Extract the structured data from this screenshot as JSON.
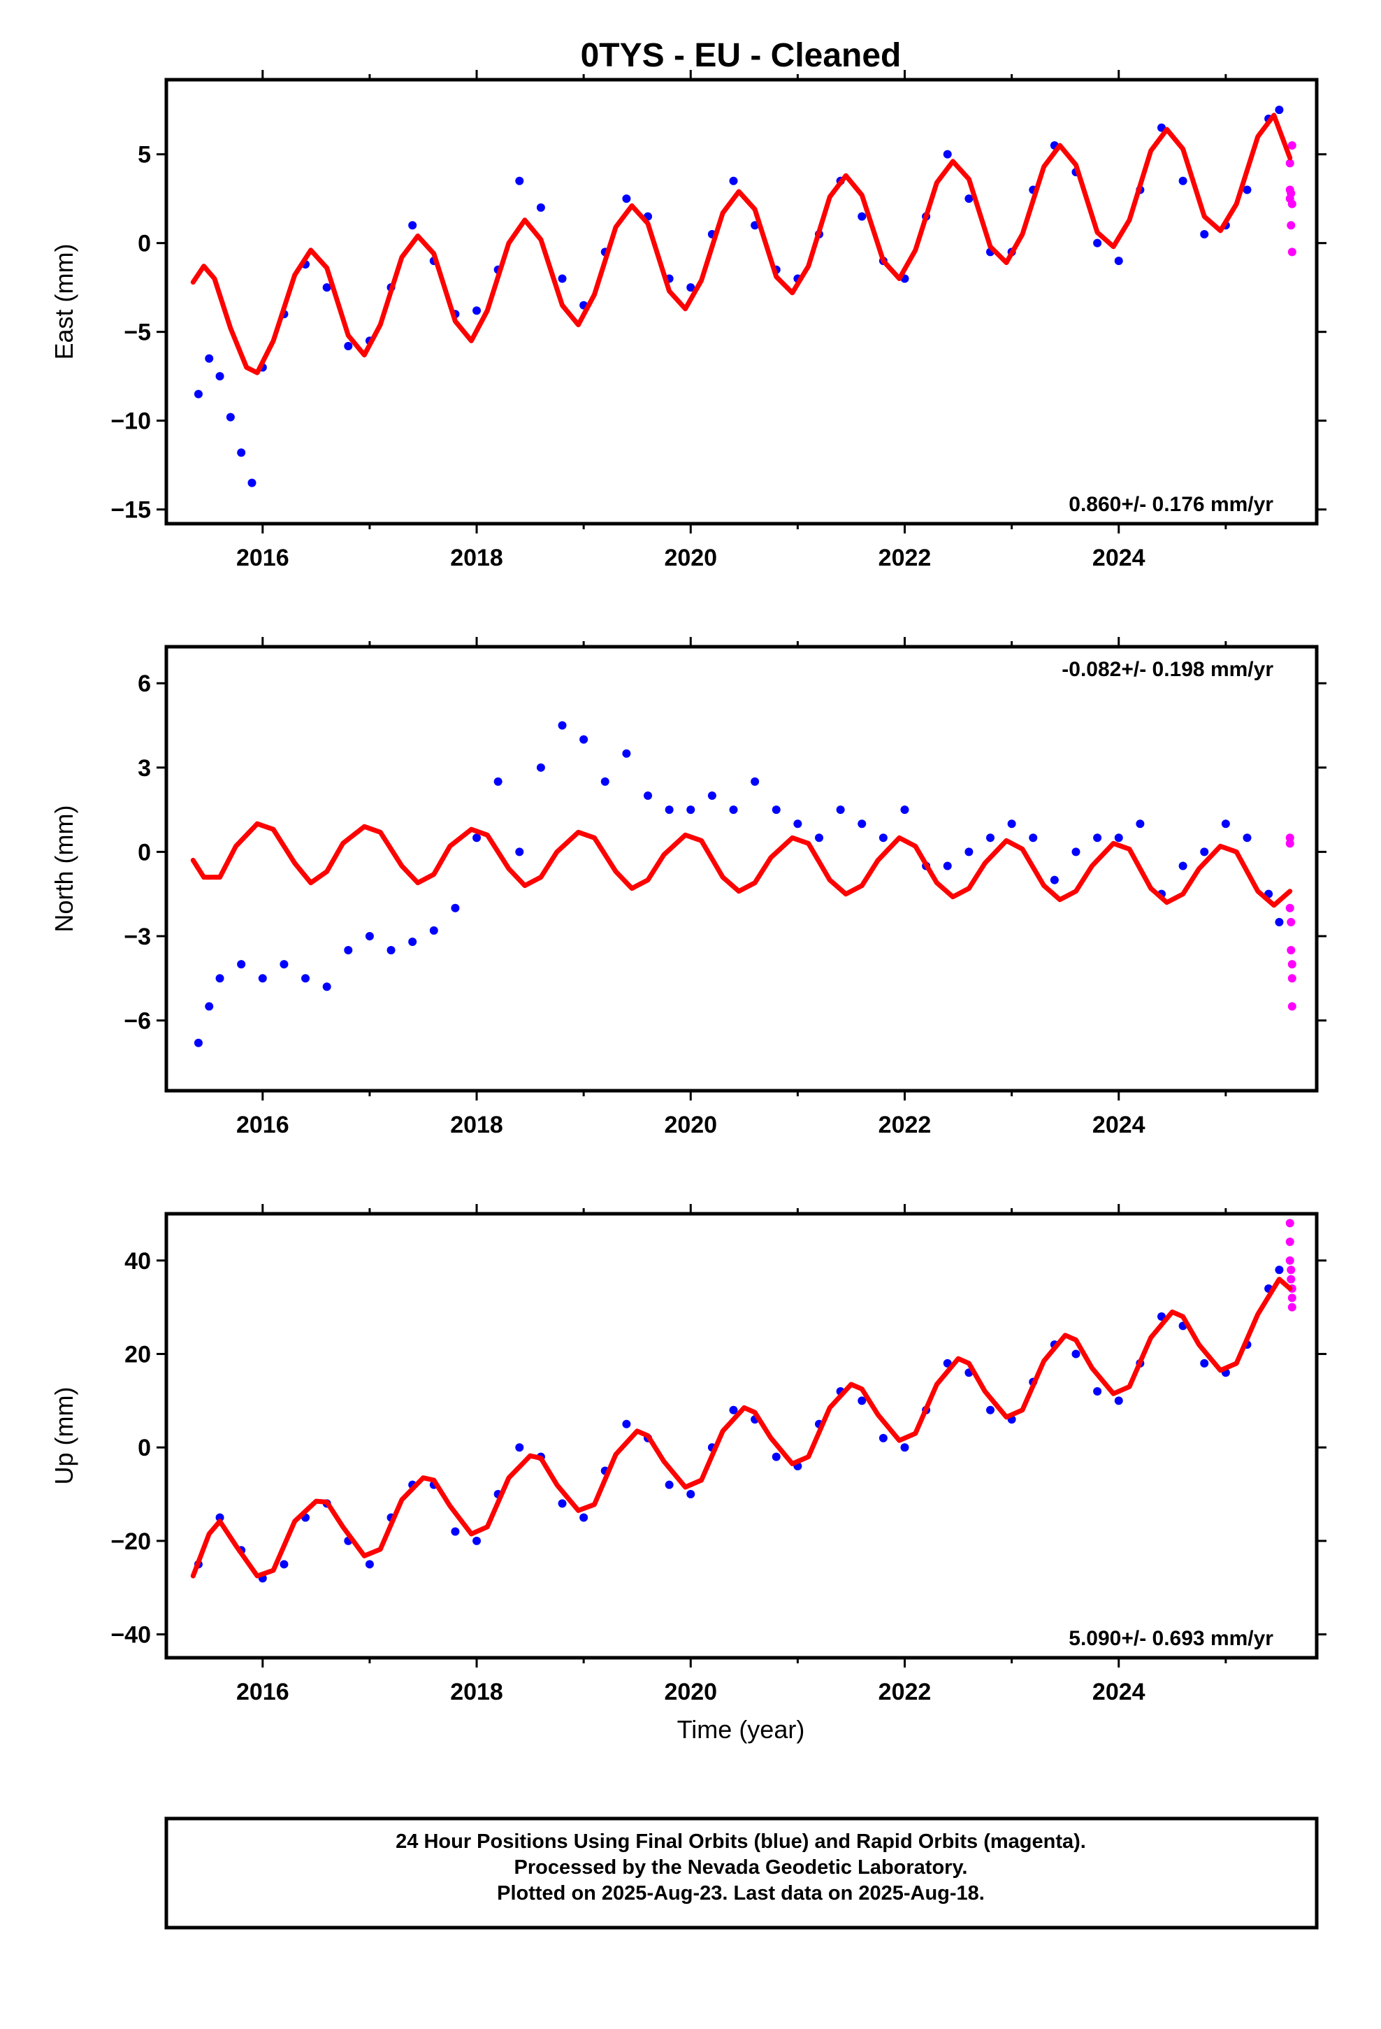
{
  "title": "0TYS  - EU - Cleaned",
  "colors": {
    "final": "#0000ff",
    "rapid": "#ff00ff",
    "model": "#ff0000",
    "frame": "#000000"
  },
  "footer": {
    "line1": "24 Hour Positions Using Final Orbits (blue) and Rapid Orbits (magenta).",
    "line2": "Processed by the Nevada Geodetic Laboratory.",
    "line3": "Plotted on 2025-Aug-23. Last data on 2025-Aug-18."
  },
  "chart_data": [
    {
      "type": "scatter",
      "component": "East",
      "ylabel": "East (mm)",
      "xlim": [
        2015.1,
        2025.85
      ],
      "ylim": [
        -15.8,
        9.2
      ],
      "xticks": [
        2016,
        2018,
        2020,
        2022,
        2024
      ],
      "xticklabels": [
        "2016",
        "2018",
        "2020",
        "2022",
        "2024"
      ],
      "yticks": [
        5,
        0,
        -5,
        -10,
        -15
      ],
      "yticklabels": [
        "5",
        "0",
        "−5",
        "−10",
        "−15"
      ],
      "rate_label": "0.860+/- 0.176 mm/yr",
      "rate_position": "bottom-right",
      "series": [
        {
          "name": "Final Orbits (blue)",
          "style": "dots",
          "x": [
            2015.4,
            2015.5,
            2015.6,
            2015.7,
            2015.8,
            2015.9,
            2016.0,
            2016.2,
            2016.4,
            2016.6,
            2016.8,
            2017.0,
            2017.2,
            2017.4,
            2017.6,
            2017.8,
            2018.0,
            2018.2,
            2018.4,
            2018.6,
            2018.8,
            2019.0,
            2019.2,
            2019.4,
            2019.6,
            2019.8,
            2020.0,
            2020.2,
            2020.4,
            2020.6,
            2020.8,
            2021.0,
            2021.2,
            2021.4,
            2021.6,
            2021.8,
            2022.0,
            2022.2,
            2022.4,
            2022.6,
            2022.8,
            2023.0,
            2023.2,
            2023.4,
            2023.6,
            2023.8,
            2024.0,
            2024.2,
            2024.4,
            2024.6,
            2024.8,
            2025.0,
            2025.2,
            2025.4,
            2025.5
          ],
          "y": [
            -8.5,
            -6.5,
            -7.5,
            -9.8,
            -11.8,
            -13.5,
            -7.0,
            -4.0,
            -1.2,
            -2.5,
            -5.8,
            -5.5,
            -2.5,
            1.0,
            -1.0,
            -4.0,
            -3.8,
            -1.5,
            3.5,
            2.0,
            -2.0,
            -3.5,
            -0.5,
            2.5,
            1.5,
            -2.0,
            -2.5,
            0.5,
            3.5,
            1.0,
            -1.5,
            -2.0,
            0.5,
            3.5,
            1.5,
            -1.0,
            -2.0,
            1.5,
            5.0,
            2.5,
            -0.5,
            -0.5,
            3.0,
            5.5,
            4.0,
            0.0,
            -1.0,
            3.0,
            6.5,
            3.5,
            0.5,
            1.0,
            3.0,
            7.0,
            7.5
          ]
        },
        {
          "name": "Rapid Orbits (magenta)",
          "style": "dots",
          "x": [
            2025.6,
            2025.6,
            2025.6,
            2025.61,
            2025.61,
            2025.62,
            2025.62,
            2025.62
          ],
          "y": [
            4.5,
            3.0,
            2.5,
            2.8,
            1.0,
            -0.5,
            5.5,
            2.2
          ]
        },
        {
          "name": "Model",
          "style": "line",
          "color": "#ff0000",
          "x": [
            2015.35,
            2015.45,
            2015.55,
            2015.7,
            2015.85,
            2015.95,
            2016.1,
            2016.3,
            2016.45,
            2016.6,
            2016.8,
            2016.95,
            2017.1,
            2017.3,
            2017.45,
            2017.6,
            2017.8,
            2017.95,
            2018.1,
            2018.3,
            2018.45,
            2018.6,
            2018.8,
            2018.95,
            2019.1,
            2019.3,
            2019.45,
            2019.6,
            2019.8,
            2019.95,
            2020.1,
            2020.3,
            2020.45,
            2020.6,
            2020.8,
            2020.95,
            2021.1,
            2021.3,
            2021.45,
            2021.6,
            2021.8,
            2021.95,
            2022.1,
            2022.3,
            2022.45,
            2022.6,
            2022.8,
            2022.95,
            2023.1,
            2023.3,
            2023.45,
            2023.6,
            2023.8,
            2023.95,
            2024.1,
            2024.3,
            2024.45,
            2024.6,
            2024.8,
            2024.95,
            2025.1,
            2025.3,
            2025.45,
            2025.6
          ],
          "y": [
            -2.2,
            -1.3,
            -2.0,
            -4.8,
            -7.0,
            -7.3,
            -5.5,
            -1.8,
            -0.4,
            -1.4,
            -5.2,
            -6.3,
            -4.6,
            -0.8,
            0.4,
            -0.6,
            -4.4,
            -5.5,
            -3.8,
            0.0,
            1.3,
            0.2,
            -3.5,
            -4.6,
            -2.9,
            0.9,
            2.1,
            1.1,
            -2.7,
            -3.7,
            -2.1,
            1.7,
            2.9,
            1.9,
            -1.9,
            -2.8,
            -1.3,
            2.6,
            3.8,
            2.7,
            -1.0,
            -2.0,
            -0.4,
            3.4,
            4.6,
            3.6,
            -0.2,
            -1.1,
            0.5,
            4.3,
            5.5,
            4.4,
            0.6,
            -0.2,
            1.3,
            5.2,
            6.4,
            5.3,
            1.5,
            0.7,
            2.2,
            6.0,
            7.2,
            4.8
          ]
        }
      ]
    },
    {
      "type": "scatter",
      "component": "North",
      "ylabel": "North (mm)",
      "xlim": [
        2015.1,
        2025.85
      ],
      "ylim": [
        -8.5,
        7.3
      ],
      "xticks": [
        2016,
        2018,
        2020,
        2022,
        2024
      ],
      "xticklabels": [
        "2016",
        "2018",
        "2020",
        "2022",
        "2024"
      ],
      "yticks": [
        6,
        3,
        0,
        -3,
        -6
      ],
      "yticklabels": [
        "6",
        "3",
        "0",
        "−3",
        "−6"
      ],
      "rate_label": "-0.082+/- 0.198 mm/yr",
      "rate_position": "top-right",
      "series": [
        {
          "name": "Final Orbits (blue)",
          "style": "dots",
          "x": [
            2015.4,
            2015.5,
            2015.6,
            2015.8,
            2016.0,
            2016.2,
            2016.4,
            2016.6,
            2016.8,
            2017.0,
            2017.2,
            2017.4,
            2017.6,
            2017.8,
            2018.0,
            2018.2,
            2018.4,
            2018.6,
            2018.8,
            2019.0,
            2019.2,
            2019.4,
            2019.6,
            2019.8,
            2020.0,
            2020.2,
            2020.4,
            2020.6,
            2020.8,
            2021.0,
            2021.2,
            2021.4,
            2021.6,
            2021.8,
            2022.0,
            2022.2,
            2022.4,
            2022.6,
            2022.8,
            2023.0,
            2023.2,
            2023.4,
            2023.6,
            2023.8,
            2024.0,
            2024.2,
            2024.4,
            2024.6,
            2024.8,
            2025.0,
            2025.2,
            2025.4,
            2025.5
          ],
          "y": [
            -6.8,
            -5.5,
            -4.5,
            -4.0,
            -4.5,
            -4.0,
            -4.5,
            -4.8,
            -3.5,
            -3.0,
            -3.5,
            -3.2,
            -2.8,
            -2.0,
            0.5,
            2.5,
            0.0,
            3.0,
            4.5,
            4.0,
            2.5,
            3.5,
            2.0,
            1.5,
            1.5,
            2.0,
            1.5,
            2.5,
            1.5,
            1.0,
            0.5,
            1.5,
            1.0,
            0.5,
            1.5,
            -0.5,
            -0.5,
            0.0,
            0.5,
            1.0,
            0.5,
            -1.0,
            0.0,
            0.5,
            0.5,
            1.0,
            -1.5,
            -0.5,
            0.0,
            1.0,
            0.5,
            -1.5,
            -2.5
          ]
        },
        {
          "name": "Rapid Orbits (magenta)",
          "style": "dots",
          "x": [
            2025.6,
            2025.6,
            2025.6,
            2025.61,
            2025.61,
            2025.62,
            2025.62,
            2025.62
          ],
          "y": [
            0.5,
            0.3,
            -2.0,
            -2.5,
            -3.5,
            -4.0,
            -4.5,
            -5.5
          ]
        },
        {
          "name": "Model",
          "style": "line",
          "color": "#ff0000",
          "x": [
            2015.35,
            2015.45,
            2015.6,
            2015.75,
            2015.95,
            2016.1,
            2016.3,
            2016.45,
            2016.6,
            2016.75,
            2016.95,
            2017.1,
            2017.3,
            2017.45,
            2017.6,
            2017.75,
            2017.95,
            2018.1,
            2018.3,
            2018.45,
            2018.6,
            2018.75,
            2018.95,
            2019.1,
            2019.3,
            2019.45,
            2019.6,
            2019.75,
            2019.95,
            2020.1,
            2020.3,
            2020.45,
            2020.6,
            2020.75,
            2020.95,
            2021.1,
            2021.3,
            2021.45,
            2021.6,
            2021.75,
            2021.95,
            2022.1,
            2022.3,
            2022.45,
            2022.6,
            2022.75,
            2022.95,
            2023.1,
            2023.3,
            2023.45,
            2023.6,
            2023.75,
            2023.95,
            2024.1,
            2024.3,
            2024.45,
            2024.6,
            2024.75,
            2024.95,
            2025.1,
            2025.3,
            2025.45,
            2025.6
          ],
          "y": [
            -0.3,
            -0.9,
            -0.9,
            0.2,
            1.0,
            0.8,
            -0.4,
            -1.1,
            -0.7,
            0.3,
            0.9,
            0.7,
            -0.5,
            -1.1,
            -0.8,
            0.2,
            0.8,
            0.6,
            -0.6,
            -1.2,
            -0.9,
            0.0,
            0.7,
            0.5,
            -0.7,
            -1.3,
            -1.0,
            -0.1,
            0.6,
            0.4,
            -0.9,
            -1.4,
            -1.1,
            -0.2,
            0.5,
            0.3,
            -1.0,
            -1.5,
            -1.2,
            -0.3,
            0.5,
            0.2,
            -1.1,
            -1.6,
            -1.3,
            -0.4,
            0.4,
            0.1,
            -1.2,
            -1.7,
            -1.4,
            -0.5,
            0.3,
            0.1,
            -1.3,
            -1.8,
            -1.5,
            -0.6,
            0.2,
            0.0,
            -1.4,
            -1.9,
            -1.4
          ]
        }
      ]
    },
    {
      "type": "scatter",
      "component": "Up",
      "ylabel": "Up (mm)",
      "xlim": [
        2015.1,
        2025.85
      ],
      "ylim": [
        -45,
        50
      ],
      "xticks": [
        2016,
        2018,
        2020,
        2022,
        2024
      ],
      "xticklabels": [
        "2016",
        "2018",
        "2020",
        "2022",
        "2024"
      ],
      "yticks": [
        40,
        20,
        0,
        -20,
        -40
      ],
      "yticklabels": [
        "40",
        "20",
        "0",
        "−20",
        "−40"
      ],
      "rate_label": "5.090+/- 0.693 mm/yr",
      "rate_position": "bottom-right",
      "xlabel": "Time (year)",
      "series": [
        {
          "name": "Final Orbits (blue)",
          "style": "dots",
          "x": [
            2015.4,
            2015.6,
            2015.8,
            2016.0,
            2016.2,
            2016.4,
            2016.6,
            2016.8,
            2017.0,
            2017.2,
            2017.4,
            2017.6,
            2017.8,
            2018.0,
            2018.2,
            2018.4,
            2018.6,
            2018.8,
            2019.0,
            2019.2,
            2019.4,
            2019.6,
            2019.8,
            2020.0,
            2020.2,
            2020.4,
            2020.6,
            2020.8,
            2021.0,
            2021.2,
            2021.4,
            2021.6,
            2021.8,
            2022.0,
            2022.2,
            2022.4,
            2022.6,
            2022.8,
            2023.0,
            2023.2,
            2023.4,
            2023.6,
            2023.8,
            2024.0,
            2024.2,
            2024.4,
            2024.6,
            2024.8,
            2025.0,
            2025.2,
            2025.4,
            2025.5
          ],
          "y": [
            -25,
            -15,
            -22,
            -28,
            -25,
            -15,
            -12,
            -20,
            -25,
            -15,
            -8,
            -8,
            -18,
            -20,
            -10,
            0,
            -2,
            -12,
            -15,
            -5,
            5,
            2,
            -8,
            -10,
            0,
            8,
            6,
            -2,
            -4,
            5,
            12,
            10,
            2,
            0,
            8,
            18,
            16,
            8,
            6,
            14,
            22,
            20,
            12,
            10,
            18,
            28,
            26,
            18,
            16,
            22,
            34,
            38
          ]
        },
        {
          "name": "Rapid Orbits (magenta)",
          "style": "dots",
          "x": [
            2025.6,
            2025.6,
            2025.6,
            2025.61,
            2025.61,
            2025.62,
            2025.62,
            2025.62
          ],
          "y": [
            48,
            44,
            40,
            38,
            36,
            34,
            32,
            30
          ]
        },
        {
          "name": "Model",
          "style": "line",
          "color": "#ff0000",
          "x": [
            2015.35,
            2015.5,
            2015.6,
            2015.75,
            2015.95,
            2016.1,
            2016.3,
            2016.5,
            2016.6,
            2016.75,
            2016.95,
            2017.1,
            2017.3,
            2017.5,
            2017.6,
            2017.75,
            2017.95,
            2018.1,
            2018.3,
            2018.5,
            2018.6,
            2018.75,
            2018.95,
            2019.1,
            2019.3,
            2019.5,
            2019.6,
            2019.75,
            2019.95,
            2020.1,
            2020.3,
            2020.5,
            2020.6,
            2020.75,
            2020.95,
            2021.1,
            2021.3,
            2021.5,
            2021.6,
            2021.75,
            2021.95,
            2022.1,
            2022.3,
            2022.5,
            2022.6,
            2022.75,
            2022.95,
            2023.1,
            2023.3,
            2023.5,
            2023.6,
            2023.75,
            2023.95,
            2024.1,
            2024.3,
            2024.5,
            2024.6,
            2024.75,
            2024.95,
            2025.1,
            2025.3,
            2025.5,
            2025.6
          ],
          "y": [
            -27.5,
            -18.5,
            -15.8,
            -21.0,
            -27.5,
            -26.3,
            -15.8,
            -11.5,
            -11.7,
            -17.0,
            -23.2,
            -21.8,
            -11.2,
            -6.5,
            -7.0,
            -12.5,
            -18.5,
            -17.0,
            -6.5,
            -1.8,
            -2.3,
            -8.0,
            -13.5,
            -12.2,
            -1.5,
            3.5,
            2.5,
            -3.0,
            -8.5,
            -7.0,
            3.5,
            8.5,
            7.5,
            2.0,
            -3.5,
            -2.0,
            8.5,
            13.5,
            12.5,
            7.0,
            1.5,
            3.0,
            13.5,
            19.0,
            18.0,
            12.0,
            6.5,
            8.0,
            18.5,
            24.0,
            23.0,
            17.0,
            11.5,
            13.0,
            23.5,
            29.0,
            28.0,
            22.0,
            16.5,
            18.0,
            28.5,
            36.0,
            34.0
          ]
        }
      ]
    }
  ]
}
